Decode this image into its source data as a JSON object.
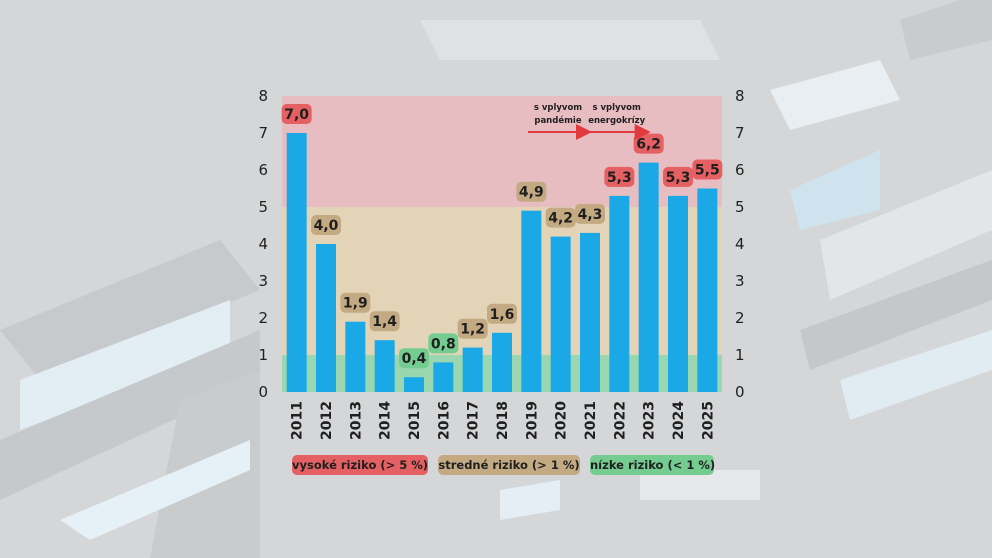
{
  "chart_data": {
    "type": "bar",
    "categories": [
      "2011",
      "2012",
      "2013",
      "2014",
      "2015",
      "2016",
      "2017",
      "2018",
      "2019",
      "2020",
      "2021",
      "2022",
      "2023",
      "2024",
      "2025"
    ],
    "values": [
      7.0,
      4.0,
      1.9,
      1.4,
      0.4,
      0.8,
      1.2,
      1.6,
      4.9,
      4.2,
      4.3,
      5.3,
      6.2,
      5.3,
      5.5
    ],
    "data_labels": [
      "7,0",
      "4,0",
      "1,9",
      "1,4",
      "0,4",
      "0,8",
      "1,2",
      "1,6",
      "4,9",
      "4,2",
      "4,3",
      "5,3",
      "6,2",
      "5,3",
      "5,5"
    ],
    "label_risk": [
      "high",
      "medium",
      "medium",
      "medium",
      "low",
      "low",
      "medium",
      "medium",
      "medium",
      "medium",
      "medium",
      "high",
      "high",
      "high",
      "high"
    ],
    "ylim": [
      0,
      8
    ],
    "yticks": [
      "0",
      "1",
      "2",
      "3",
      "4",
      "5",
      "6",
      "7",
      "8"
    ],
    "bar_color": "#1aa9e6",
    "zones": [
      {
        "name": "low",
        "from": 0,
        "to": 1,
        "color": "#8fd6a8"
      },
      {
        "name": "medium",
        "from": 1,
        "to": 5,
        "color": "#e5d3b3"
      },
      {
        "name": "high",
        "from": 5,
        "to": 8,
        "color": "#ebb8bd"
      }
    ],
    "annotations": [
      {
        "lines": [
          "s vplyvom",
          "pandémie"
        ],
        "category": "2021"
      },
      {
        "lines": [
          "s vplyvom",
          "energokrízy"
        ],
        "category": "2023"
      }
    ],
    "arrow_color": "#e0393e"
  },
  "legend": {
    "high": {
      "label": "vysoké riziko (> 5 %)",
      "color": "#e56062"
    },
    "medium": {
      "label": "stredné riziko (> 1 %)",
      "color": "#c3aa83"
    },
    "low": {
      "label": "nízke riziko (< 1 %)",
      "color": "#74cc91"
    }
  }
}
